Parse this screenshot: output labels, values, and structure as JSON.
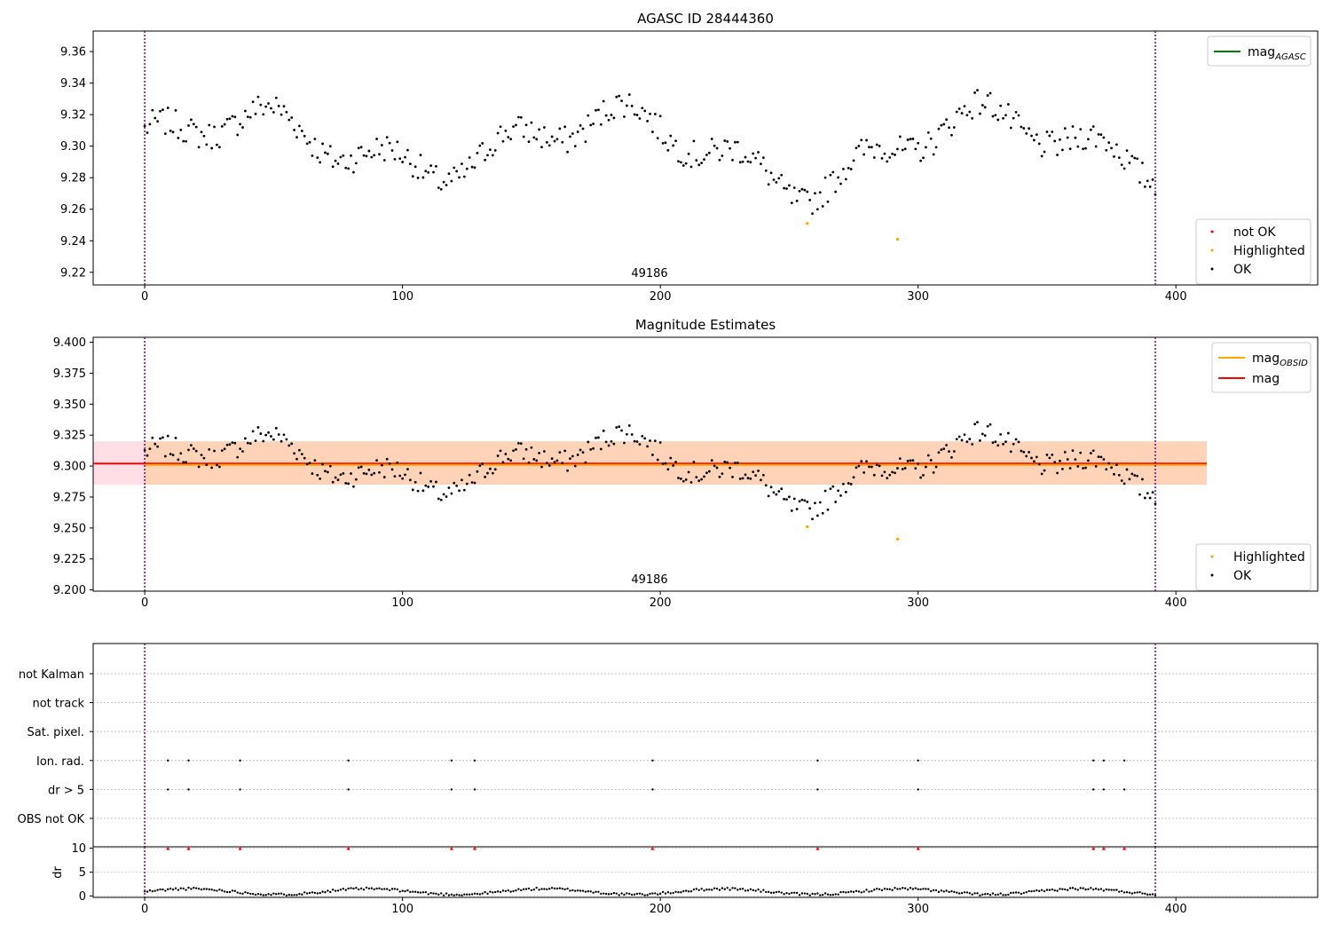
{
  "figure": {
    "title_top": "AGASC ID 28444360",
    "title_mid": "Magnitude Estimates",
    "obsid_label": "49186"
  },
  "chart_data": [
    {
      "id": "agasc-panel",
      "type": "scatter",
      "title": "AGASC ID 28444360",
      "xlim": [
        -20,
        455
      ],
      "ylim": [
        9.212,
        9.373
      ],
      "xticks": [
        0,
        100,
        200,
        300,
        400
      ],
      "yticks": [
        9.22,
        9.24,
        9.26,
        9.28,
        9.3,
        9.32,
        9.34,
        9.36
      ],
      "obs_boundaries": [
        0,
        392
      ],
      "obsid": "49186",
      "highlighted": [
        {
          "x": 257,
          "y": 9.251
        },
        {
          "x": 292,
          "y": 9.241
        }
      ],
      "line_legend": [
        {
          "label": "mag",
          "sub": "AGASC",
          "color": "#008000"
        }
      ],
      "point_legend": [
        {
          "label": "not OK",
          "color": "#ff0000"
        },
        {
          "label": "Highlighted",
          "color": "#ffa500"
        },
        {
          "label": "OK",
          "color": "#000000"
        }
      ]
    },
    {
      "id": "mag-estimates-panel",
      "type": "scatter",
      "title": "Magnitude Estimates",
      "xlim": [
        -20,
        455
      ],
      "ylim": [
        9.199,
        9.404
      ],
      "xticks": [
        0,
        100,
        200,
        300,
        400
      ],
      "yticks": [
        9.2,
        9.225,
        9.25,
        9.275,
        9.3,
        9.325,
        9.35,
        9.375,
        9.4
      ],
      "obs_boundaries": [
        0,
        392
      ],
      "obsid": "49186",
      "mag": 9.302,
      "mag_band": [
        9.285,
        9.32
      ],
      "mag_obsid": 9.301,
      "band_x_end": 412,
      "highlighted": [
        {
          "x": 257,
          "y": 9.251
        },
        {
          "x": 292,
          "y": 9.241
        }
      ],
      "line_legend": [
        {
          "label": "mag",
          "sub": "OBSID",
          "color": "#ffa500"
        },
        {
          "label": "mag",
          "sub": "",
          "color": "#ff0000"
        }
      ],
      "point_legend": [
        {
          "label": "Highlighted",
          "color": "#ffa500"
        },
        {
          "label": "OK",
          "color": "#000000"
        }
      ]
    },
    {
      "id": "flags-panel",
      "type": "scatter",
      "xlim": [
        -20,
        455
      ],
      "categories": [
        "not Kalman",
        "not track",
        "Sat. pixel.",
        "Ion. rad.",
        "dr > 5",
        "OBS not OK"
      ],
      "flag_points": {
        "Ion. rad.": [
          9,
          17,
          37,
          79,
          119,
          128,
          197,
          261,
          300,
          368,
          372,
          380
        ],
        "dr > 5": [
          9,
          17,
          37,
          79,
          119,
          128,
          197,
          261,
          300,
          368,
          372,
          380
        ]
      },
      "obs_boundaries": [
        0,
        392
      ]
    },
    {
      "id": "dr-panel",
      "type": "scatter",
      "xlim": [
        -20,
        455
      ],
      "ylim": [
        -0.3,
        10.3
      ],
      "ylabel": "dr",
      "xticks": [
        0,
        100,
        200,
        300,
        400
      ],
      "yticks": [
        0,
        5,
        10
      ],
      "clipped_markers_x": [
        9,
        17,
        37,
        79,
        119,
        128,
        197,
        261,
        300,
        368,
        372,
        380
      ],
      "obs_boundaries": [
        0,
        392
      ]
    }
  ]
}
